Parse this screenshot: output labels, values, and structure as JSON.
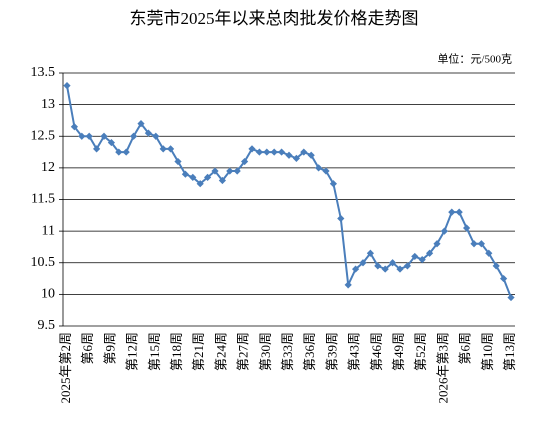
{
  "chart_data": {
    "type": "line",
    "title": "东莞市2025年以来总肉批发价格走势图",
    "unit_label": "单位：元/500克",
    "categories": [
      "2025年第2周",
      null,
      null,
      "第6周",
      null,
      null,
      "第9周",
      null,
      null,
      "第12周",
      null,
      null,
      "第15周",
      null,
      null,
      "第18周",
      null,
      null,
      "第21周",
      null,
      null,
      "第24周",
      null,
      null,
      "第27周",
      null,
      null,
      "第30周",
      null,
      null,
      "第33周",
      null,
      null,
      "第36周",
      null,
      null,
      "第39周",
      null,
      null,
      "第43周",
      null,
      null,
      "第46周",
      null,
      null,
      "第49周",
      null,
      null,
      "第52周",
      null,
      null,
      "2026年第3周",
      null,
      null,
      "第6周",
      null,
      null,
      "第10周",
      null,
      null,
      "第13周"
    ],
    "values": [
      13.3,
      12.65,
      12.5,
      12.5,
      12.3,
      12.5,
      12.4,
      12.25,
      12.25,
      12.5,
      12.7,
      12.55,
      12.5,
      12.3,
      12.3,
      12.1,
      11.9,
      11.85,
      11.75,
      11.85,
      11.95,
      11.8,
      11.95,
      11.95,
      12.1,
      12.3,
      12.25,
      12.25,
      12.25,
      12.25,
      12.2,
      12.15,
      12.25,
      12.2,
      12.0,
      11.95,
      11.75,
      11.2,
      10.15,
      10.4,
      10.5,
      10.65,
      10.45,
      10.4,
      10.5,
      10.4,
      10.45,
      10.6,
      10.55,
      10.65,
      10.8,
      11.0,
      11.3,
      11.3,
      11.05,
      10.8,
      10.8,
      10.65,
      10.45,
      10.25,
      9.95
    ],
    "color": "#4a7ebb",
    "ylim": [
      9.5,
      13.5
    ],
    "yticks": [
      9.5,
      10,
      10.5,
      11,
      11.5,
      12,
      12.5,
      13,
      13.5
    ],
    "grid": true
  }
}
